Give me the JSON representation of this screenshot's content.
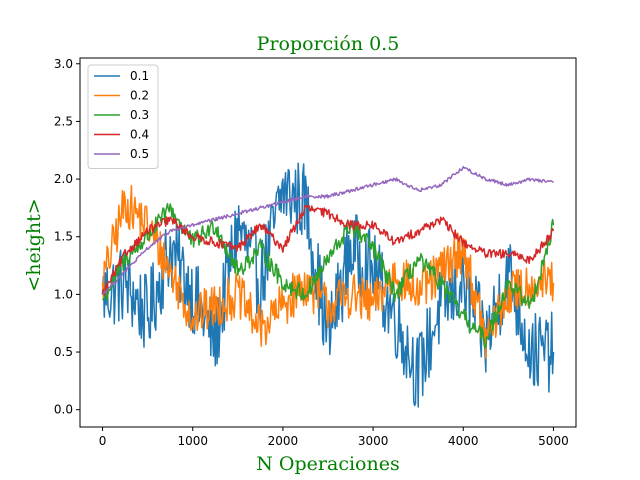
{
  "chart_data": {
    "type": "line",
    "title": "Proporción 0.5",
    "xlabel": "N Operaciones",
    "ylabel": "<height>",
    "xlim": [
      -250,
      5250
    ],
    "ylim": [
      -0.15,
      3.05
    ],
    "x_ticks": [
      0,
      1000,
      2000,
      3000,
      4000,
      5000
    ],
    "y_ticks": [
      0.0,
      0.5,
      1.0,
      1.5,
      2.0,
      2.5,
      3.0
    ],
    "x_tick_labels": [
      "0",
      "1000",
      "2000",
      "3000",
      "4000",
      "5000"
    ],
    "y_tick_labels": [
      "0.0",
      "0.5",
      "1.0",
      "1.5",
      "2.0",
      "2.5",
      "3.0"
    ],
    "grid": false,
    "legend_position": "top-left",
    "x": [
      0,
      250,
      500,
      750,
      1000,
      1250,
      1500,
      1750,
      2000,
      2250,
      2500,
      2750,
      3000,
      3250,
      3500,
      3750,
      4000,
      4250,
      4500,
      4750,
      5000
    ],
    "series": [
      {
        "name": "0.1",
        "color": "#1f77b4",
        "values": [
          1.0,
          1.1,
          0.8,
          1.4,
          1.0,
          0.6,
          1.6,
          1.1,
          1.9,
          1.8,
          0.6,
          1.4,
          1.2,
          0.8,
          0.3,
          0.9,
          1.1,
          0.6,
          1.2,
          0.5,
          0.5
        ]
      },
      {
        "name": "0.2",
        "color": "#ff7f0e",
        "values": [
          1.1,
          1.8,
          1.6,
          1.2,
          0.8,
          0.9,
          1.0,
          0.7,
          0.9,
          1.1,
          0.9,
          1.0,
          0.9,
          1.2,
          1.0,
          1.2,
          1.4,
          0.6,
          1.0,
          1.1,
          1.1
        ]
      },
      {
        "name": "0.3",
        "color": "#2ca02c",
        "values": [
          0.95,
          1.3,
          1.5,
          1.75,
          1.45,
          1.6,
          1.2,
          1.4,
          1.1,
          1.0,
          1.3,
          1.6,
          1.4,
          1.0,
          1.3,
          1.1,
          0.8,
          0.6,
          1.1,
          0.9,
          1.6
        ]
      },
      {
        "name": "0.4",
        "color": "#d62728",
        "values": [
          1.0,
          1.35,
          1.55,
          1.65,
          1.5,
          1.45,
          1.4,
          1.6,
          1.4,
          1.75,
          1.7,
          1.6,
          1.6,
          1.45,
          1.55,
          1.65,
          1.45,
          1.35,
          1.35,
          1.3,
          1.55
        ]
      },
      {
        "name": "0.5",
        "color": "#9467bd",
        "values": [
          1.0,
          1.2,
          1.4,
          1.55,
          1.6,
          1.65,
          1.7,
          1.75,
          1.8,
          1.85,
          1.85,
          1.9,
          1.95,
          2.0,
          1.9,
          1.95,
          2.1,
          2.0,
          1.95,
          2.0,
          1.97
        ]
      }
    ]
  }
}
